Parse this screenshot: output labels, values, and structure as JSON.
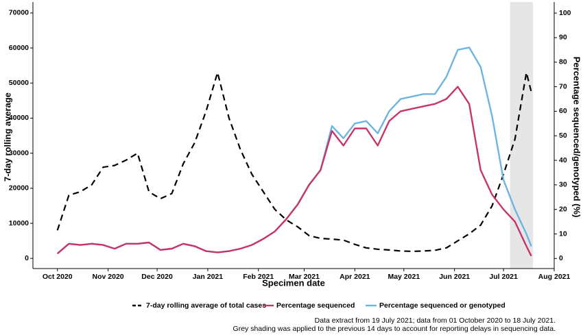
{
  "chart_data": {
    "type": "line",
    "xlabel": "Specimen date",
    "ylabel": "7-day rolling average",
    "y2label": "Percentage sequenced/genotyped (%)",
    "x": [
      "2020-10-01",
      "2020-10-08",
      "2020-10-15",
      "2020-10-22",
      "2020-10-29",
      "2020-11-05",
      "2020-11-12",
      "2020-11-19",
      "2020-11-26",
      "2020-12-03",
      "2020-12-10",
      "2020-12-17",
      "2020-12-24",
      "2020-12-31",
      "2021-01-07",
      "2021-01-14",
      "2021-01-21",
      "2021-01-28",
      "2021-02-04",
      "2021-02-11",
      "2021-02-18",
      "2021-02-25",
      "2021-03-04",
      "2021-03-11",
      "2021-03-18",
      "2021-03-25",
      "2021-04-01",
      "2021-04-08",
      "2021-04-15",
      "2021-04-22",
      "2021-04-29",
      "2021-05-06",
      "2021-05-13",
      "2021-05-20",
      "2021-05-27",
      "2021-06-03",
      "2021-06-10",
      "2021-06-17",
      "2021-06-24",
      "2021-07-01",
      "2021-07-08",
      "2021-07-15",
      "2021-07-18"
    ],
    "series": [
      {
        "name": "7-day rolling average of total cases",
        "color": "#000000",
        "dash": true,
        "values": [
          8000,
          18000,
          19000,
          21000,
          26000,
          26500,
          28000,
          30000,
          19000,
          17000,
          18500,
          27000,
          33000,
          42000,
          53000,
          40000,
          31000,
          24000,
          19000,
          14000,
          11000,
          9000,
          6500,
          5700,
          5500,
          5200,
          4000,
          3000,
          2600,
          2400,
          2100,
          2000,
          2100,
          2300,
          3000,
          5000,
          7000,
          9500,
          15000,
          24000,
          34000,
          53000,
          47500
        ]
      },
      {
        "name": "Percentage sequenced or genotyped",
        "color": "#6bb5e0",
        "axis": "y2",
        "values": [
          2,
          6,
          5.5,
          6,
          5.5,
          4,
          6,
          6,
          6.5,
          3.5,
          4,
          6,
          5,
          3,
          2.5,
          3,
          4,
          5.5,
          8,
          11,
          16,
          22,
          30,
          36,
          54,
          49,
          55,
          56,
          51,
          60,
          65,
          66,
          67,
          67,
          74,
          85,
          86,
          78,
          58,
          32,
          20,
          10,
          5
        ]
      },
      {
        "name": "Percentage sequenced",
        "color": "#c8336b",
        "axis": "y2",
        "values": [
          2,
          6,
          5.5,
          6,
          5.5,
          4,
          6,
          6,
          6.5,
          3.5,
          4,
          6,
          5,
          3,
          2.5,
          3,
          4,
          5.5,
          8,
          11,
          16,
          22,
          30,
          36,
          52,
          46,
          53,
          53,
          46,
          56,
          60,
          61,
          62,
          63,
          65,
          70,
          63,
          36,
          26,
          20,
          15,
          5,
          1
        ]
      }
    ],
    "legend_order": [
      0,
      2,
      1
    ],
    "legend": "bottom",
    "xlim": [
      "2020-09-16",
      "2021-08-01"
    ],
    "xticks": [
      {
        "value": "2020-10-01",
        "label": "Oct 2020"
      },
      {
        "value": "2020-11-01",
        "label": "Nov 2020"
      },
      {
        "value": "2020-12-01",
        "label": "Dec 2020"
      },
      {
        "value": "2021-01-01",
        "label": "Jan 2021"
      },
      {
        "value": "2021-02-01",
        "label": "Feb 2021"
      },
      {
        "value": "2021-03-01",
        "label": "Mar 2021"
      },
      {
        "value": "2021-04-01",
        "label": "Apr 2021"
      },
      {
        "value": "2021-05-01",
        "label": "May 2021"
      },
      {
        "value": "2021-06-01",
        "label": "Jun 2021"
      },
      {
        "value": "2021-07-01",
        "label": "Jul 2021"
      },
      {
        "value": "2021-08-01",
        "label": "Aug 2021"
      }
    ],
    "ylim": [
      -2900,
      73100
    ],
    "yticks": [
      0,
      10000,
      20000,
      30000,
      40000,
      50000,
      60000,
      70000
    ],
    "y2lim": [
      -4.1,
      104.5
    ],
    "y2ticks": [
      0,
      10,
      20,
      30,
      40,
      50,
      60,
      70,
      80,
      90,
      100
    ],
    "shade": {
      "from": "2021-07-05",
      "to": "2021-07-19",
      "color": "#e6e6e6"
    },
    "notes": [
      "Data extract from 19 July 2021; data from 01 October 2020 to 18 July 2021.",
      "Grey shading was applied to the previous 14 days to account for reporting delays in sequencing data."
    ]
  }
}
